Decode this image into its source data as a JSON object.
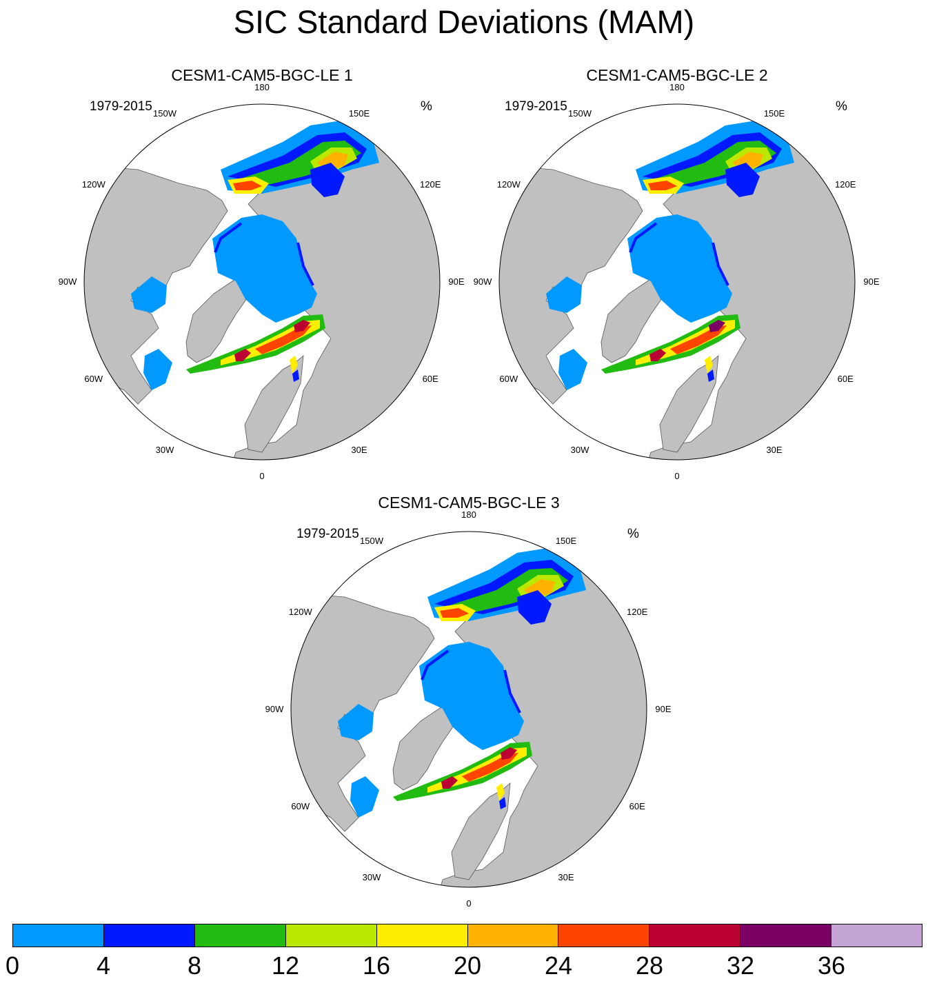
{
  "title": "SIC Standard Deviations (MAM)",
  "panels": [
    {
      "title": "CESM1-CAM5-BGC-LE 1",
      "period": "1979-2015",
      "unit": "%"
    },
    {
      "title": "CESM1-CAM5-BGC-LE 2",
      "period": "1979-2015",
      "unit": "%"
    },
    {
      "title": "CESM1-CAM5-BGC-LE 3",
      "period": "1979-2015",
      "unit": "%"
    }
  ],
  "longitude_labels": [
    "180",
    "150E",
    "120E",
    "90E",
    "60E",
    "30E",
    "0",
    "30W",
    "60W",
    "90W",
    "120W",
    "150W"
  ],
  "colorbar": {
    "labels": [
      "0",
      "4",
      "8",
      "12",
      "16",
      "20",
      "24",
      "28",
      "32",
      "36"
    ],
    "colors": [
      "#0099ff",
      "#0019ff",
      "#22bb11",
      "#bbe800",
      "#ffee00",
      "#ffb300",
      "#ff4400",
      "#bb0033",
      "#7a0066",
      "#c4a4d4"
    ]
  },
  "map_colors": {
    "land": "#c0c0c0",
    "ocean": "#ffffff",
    "ice_low": "#0099ff"
  }
}
